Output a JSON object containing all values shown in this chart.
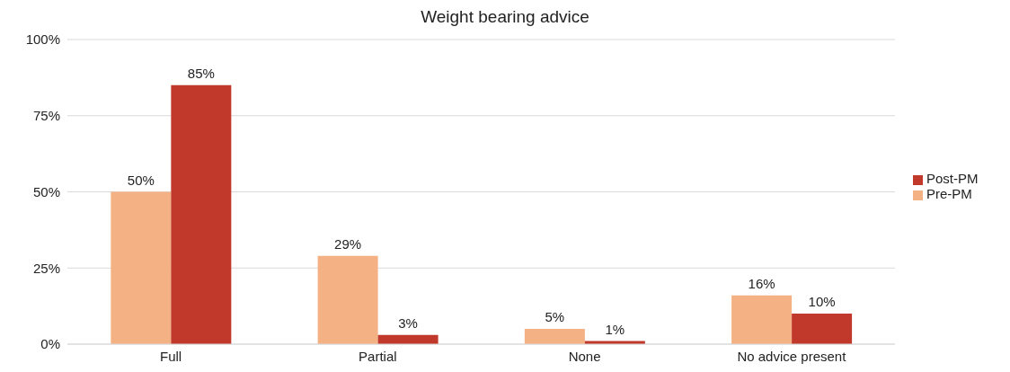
{
  "chart_data": {
    "type": "bar",
    "title": "Weight bearing advice",
    "categories": [
      "Full",
      "Partial",
      "None",
      "No advice present"
    ],
    "series": [
      {
        "name": "Pre-PM",
        "color": "#f4b183",
        "values": [
          50,
          29,
          5,
          16
        ],
        "value_labels": [
          "50%",
          "29%",
          "5%",
          "16%"
        ]
      },
      {
        "name": "Post-PM",
        "color": "#c0392b",
        "values": [
          85,
          3,
          1,
          10
        ],
        "value_labels": [
          "85%",
          "3%",
          "1%",
          "10%"
        ]
      }
    ],
    "ylim": [
      0,
      100
    ],
    "yticks": [
      {
        "value": 0,
        "label": "0%"
      },
      {
        "value": 25,
        "label": "25%"
      },
      {
        "value": 50,
        "label": "50%"
      },
      {
        "value": 75,
        "label": "75%"
      },
      {
        "value": 100,
        "label": "100%"
      }
    ],
    "grid": "y",
    "legend": "right"
  }
}
